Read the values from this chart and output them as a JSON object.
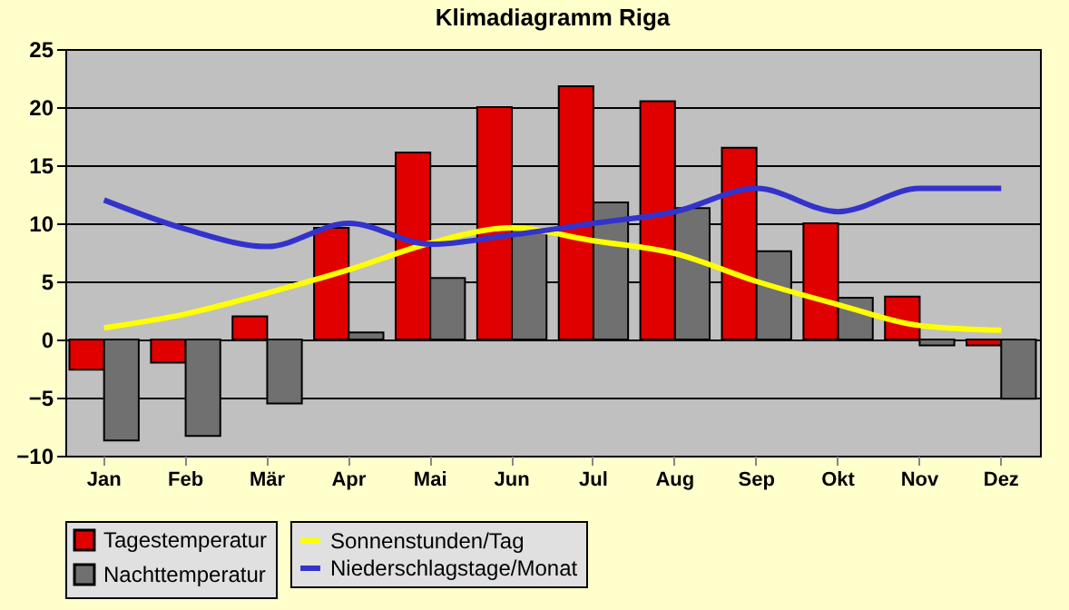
{
  "chart_data": {
    "type": "bar",
    "title": "Klimadiagramm Riga",
    "categories": [
      "Jan",
      "Feb",
      "Mär",
      "Apr",
      "Mai",
      "Jun",
      "Jul",
      "Aug",
      "Sep",
      "Okt",
      "Nov",
      "Dez"
    ],
    "series": [
      {
        "name": "Tagestemperatur",
        "type": "bar",
        "color": "#e00000",
        "values": [
          -2.6,
          -2,
          2,
          9.6,
          16.1,
          20,
          21.8,
          20.5,
          16.5,
          10,
          3.7,
          -0.5
        ]
      },
      {
        "name": "Nachttemperatur",
        "type": "bar",
        "color": "#707070",
        "values": [
          -8.7,
          -8.3,
          -5.5,
          0.6,
          5.3,
          9.5,
          11.8,
          11.3,
          7.6,
          3.6,
          -0.5,
          -5.1
        ]
      },
      {
        "name": "Sonnenstunden/Tag",
        "type": "line",
        "color": "#ffff00",
        "values": [
          1,
          2.2,
          4,
          6,
          8.3,
          9.6,
          8.5,
          7.4,
          5,
          3,
          1.2,
          0.8
        ]
      },
      {
        "name": "Niederschlagstage/Monat",
        "type": "line",
        "color": "#3333cc",
        "values": [
          12,
          9.5,
          8,
          10,
          8.2,
          9,
          10,
          11,
          13,
          11,
          13,
          13
        ]
      }
    ],
    "ylim": [
      -10,
      25
    ],
    "yticks": [
      -10,
      -5,
      0,
      5,
      10,
      15,
      20,
      25
    ],
    "grid": "y",
    "legend": "bottom"
  }
}
